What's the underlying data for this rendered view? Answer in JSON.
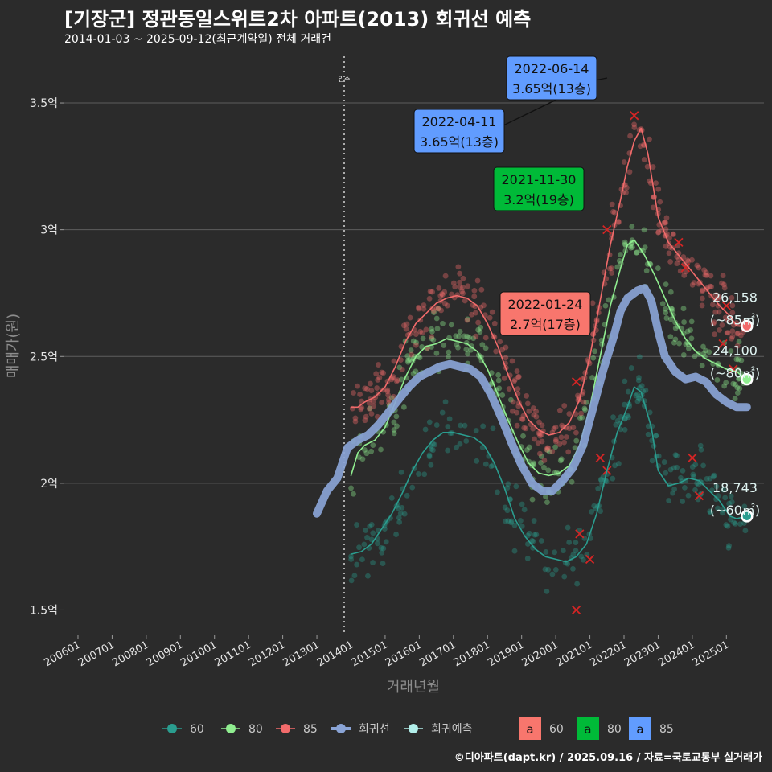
{
  "title": "[기장군] 정관동일스위트2차 아파트(2013) 회귀선 예측",
  "subtitle": "2014-01-03 ~ 2025-09-12(최근계약일) 전체 거래건",
  "footer": "©디아파트(dapt.kr) / 2025.09.16 / 자료=국토교통부 실거래가",
  "colors": {
    "background": "#2b2b2b",
    "grid": "#5e5e5e",
    "s60": "#2a9d8f",
    "s80": "#90ee90",
    "s85": "#f26b6b",
    "regression": "#8aa4d6",
    "forecast": "#b2efea",
    "label60": "#f8766d",
    "label80": "#00ba38",
    "label85": "#619cff"
  },
  "chart_data": {
    "type": "line",
    "title": "[기장군] 정관동일스위트2차 아파트(2013) 회귀선 예측",
    "xlabel": "거래년월",
    "ylabel": "매매가(원)",
    "x_ticks": [
      "200601",
      "200701",
      "200801",
      "200901",
      "201001",
      "201101",
      "201201",
      "201301",
      "201401",
      "201501",
      "201601",
      "201701",
      "201801",
      "201901",
      "202001",
      "202101",
      "202201",
      "202301",
      "202401",
      "202501"
    ],
    "y_ticks": [
      {
        "value": 1.5,
        "label": "1.5억"
      },
      {
        "value": 2.0,
        "label": "2억"
      },
      {
        "value": 2.5,
        "label": "2.5억"
      },
      {
        "value": 3.0,
        "label": "3억"
      },
      {
        "value": 3.5,
        "label": "3.5억"
      }
    ],
    "xlim": [
      2005.6,
      2026.1
    ],
    "ylim": [
      1.4,
      3.7
    ],
    "grid": true,
    "vline": {
      "x": 2013.8,
      "label": "입주"
    },
    "series": [
      {
        "name": "60",
        "color_key": "s60",
        "points": [
          [
            2014.0,
            1.72
          ],
          [
            2014.3,
            1.73
          ],
          [
            2014.6,
            1.76
          ],
          [
            2014.9,
            1.82
          ],
          [
            2015.2,
            1.88
          ],
          [
            2015.5,
            1.96
          ],
          [
            2015.8,
            2.05
          ],
          [
            2016.1,
            2.12
          ],
          [
            2016.4,
            2.17
          ],
          [
            2016.7,
            2.2
          ],
          [
            2017.0,
            2.2
          ],
          [
            2017.3,
            2.19
          ],
          [
            2017.6,
            2.18
          ],
          [
            2017.9,
            2.15
          ],
          [
            2018.2,
            2.08
          ],
          [
            2018.5,
            1.98
          ],
          [
            2018.8,
            1.86
          ],
          [
            2019.1,
            1.79
          ],
          [
            2019.4,
            1.74
          ],
          [
            2019.7,
            1.71
          ],
          [
            2020.0,
            1.7
          ],
          [
            2020.3,
            1.69
          ],
          [
            2020.6,
            1.71
          ],
          [
            2020.9,
            1.76
          ],
          [
            2021.2,
            1.88
          ],
          [
            2021.5,
            2.05
          ],
          [
            2021.8,
            2.2
          ],
          [
            2022.1,
            2.3
          ],
          [
            2022.3,
            2.38
          ],
          [
            2022.5,
            2.36
          ],
          [
            2022.8,
            2.22
          ],
          [
            2023.0,
            2.05
          ],
          [
            2023.3,
            1.99
          ],
          [
            2023.6,
            2.0
          ],
          [
            2023.9,
            2.02
          ],
          [
            2024.2,
            2.01
          ],
          [
            2024.5,
            1.97
          ],
          [
            2024.8,
            1.93
          ],
          [
            2025.1,
            1.87
          ],
          [
            2025.3,
            1.86
          ],
          [
            2025.6,
            1.87
          ]
        ],
        "end_value": "18,743",
        "end_label": "(~60㎡)"
      },
      {
        "name": "80",
        "color_key": "s80",
        "points": [
          [
            2014.0,
            2.03
          ],
          [
            2014.2,
            2.12
          ],
          [
            2014.4,
            2.15
          ],
          [
            2014.7,
            2.17
          ],
          [
            2015.0,
            2.22
          ],
          [
            2015.3,
            2.32
          ],
          [
            2015.6,
            2.42
          ],
          [
            2015.9,
            2.5
          ],
          [
            2016.2,
            2.54
          ],
          [
            2016.5,
            2.55
          ],
          [
            2016.8,
            2.57
          ],
          [
            2017.1,
            2.56
          ],
          [
            2017.4,
            2.55
          ],
          [
            2017.7,
            2.52
          ],
          [
            2018.0,
            2.45
          ],
          [
            2018.3,
            2.35
          ],
          [
            2018.6,
            2.25
          ],
          [
            2018.9,
            2.16
          ],
          [
            2019.2,
            2.08
          ],
          [
            2019.5,
            2.04
          ],
          [
            2019.8,
            2.03
          ],
          [
            2020.1,
            2.04
          ],
          [
            2020.4,
            2.07
          ],
          [
            2020.7,
            2.15
          ],
          [
            2021.0,
            2.3
          ],
          [
            2021.3,
            2.5
          ],
          [
            2021.6,
            2.7
          ],
          [
            2021.9,
            2.85
          ],
          [
            2022.1,
            2.94
          ],
          [
            2022.3,
            2.96
          ],
          [
            2022.6,
            2.9
          ],
          [
            2022.9,
            2.82
          ],
          [
            2023.2,
            2.73
          ],
          [
            2023.5,
            2.64
          ],
          [
            2023.8,
            2.57
          ],
          [
            2024.1,
            2.52
          ],
          [
            2024.4,
            2.49
          ],
          [
            2024.7,
            2.47
          ],
          [
            2025.0,
            2.45
          ],
          [
            2025.3,
            2.44
          ],
          [
            2025.6,
            2.41
          ]
        ],
        "end_value": "24,100",
        "end_label": "(~80㎡)"
      },
      {
        "name": "85",
        "color_key": "s85",
        "points": [
          [
            2014.0,
            2.3
          ],
          [
            2014.2,
            2.3
          ],
          [
            2014.4,
            2.32
          ],
          [
            2014.7,
            2.34
          ],
          [
            2015.0,
            2.38
          ],
          [
            2015.3,
            2.46
          ],
          [
            2015.6,
            2.56
          ],
          [
            2015.9,
            2.63
          ],
          [
            2016.2,
            2.67
          ],
          [
            2016.5,
            2.71
          ],
          [
            2016.8,
            2.73
          ],
          [
            2017.1,
            2.74
          ],
          [
            2017.4,
            2.73
          ],
          [
            2017.7,
            2.7
          ],
          [
            2018.0,
            2.63
          ],
          [
            2018.3,
            2.54
          ],
          [
            2018.6,
            2.43
          ],
          [
            2018.9,
            2.33
          ],
          [
            2019.2,
            2.25
          ],
          [
            2019.5,
            2.21
          ],
          [
            2019.8,
            2.19
          ],
          [
            2020.1,
            2.2
          ],
          [
            2020.4,
            2.24
          ],
          [
            2020.7,
            2.33
          ],
          [
            2021.0,
            2.5
          ],
          [
            2021.3,
            2.72
          ],
          [
            2021.6,
            2.94
          ],
          [
            2021.9,
            3.12
          ],
          [
            2022.1,
            3.25
          ],
          [
            2022.3,
            3.35
          ],
          [
            2022.5,
            3.4
          ],
          [
            2022.7,
            3.3
          ],
          [
            2023.0,
            3.05
          ],
          [
            2023.3,
            2.95
          ],
          [
            2023.6,
            2.9
          ],
          [
            2023.9,
            2.85
          ],
          [
            2024.2,
            2.8
          ],
          [
            2024.5,
            2.75
          ],
          [
            2024.8,
            2.7
          ],
          [
            2025.1,
            2.66
          ],
          [
            2025.3,
            2.62
          ],
          [
            2025.6,
            2.62
          ]
        ],
        "end_value": "26,158",
        "end_label": "(~85㎡)"
      },
      {
        "name": "회귀선",
        "color_key": "regression",
        "points": [
          [
            2013.0,
            1.88
          ],
          [
            2013.3,
            1.97
          ],
          [
            2013.6,
            2.02
          ],
          [
            2013.9,
            2.14
          ],
          [
            2014.2,
            2.17
          ],
          [
            2014.5,
            2.19
          ],
          [
            2014.8,
            2.23
          ],
          [
            2015.1,
            2.28
          ],
          [
            2015.4,
            2.33
          ],
          [
            2015.7,
            2.38
          ],
          [
            2016.0,
            2.42
          ],
          [
            2016.3,
            2.44
          ],
          [
            2016.6,
            2.46
          ],
          [
            2016.9,
            2.47
          ],
          [
            2017.2,
            2.46
          ],
          [
            2017.5,
            2.45
          ],
          [
            2017.8,
            2.42
          ],
          [
            2018.1,
            2.35
          ],
          [
            2018.4,
            2.26
          ],
          [
            2018.7,
            2.16
          ],
          [
            2019.0,
            2.07
          ],
          [
            2019.3,
            2.0
          ],
          [
            2019.6,
            1.97
          ],
          [
            2019.9,
            1.97
          ],
          [
            2020.2,
            2.01
          ],
          [
            2020.5,
            2.06
          ],
          [
            2020.8,
            2.15
          ],
          [
            2021.1,
            2.3
          ],
          [
            2021.4,
            2.45
          ],
          [
            2021.7,
            2.58
          ],
          [
            2021.9,
            2.68
          ],
          [
            2022.1,
            2.73
          ],
          [
            2022.4,
            2.76
          ],
          [
            2022.6,
            2.77
          ],
          [
            2022.8,
            2.72
          ],
          [
            2023.0,
            2.6
          ],
          [
            2023.2,
            2.5
          ],
          [
            2023.5,
            2.44
          ],
          [
            2023.8,
            2.41
          ],
          [
            2024.1,
            2.42
          ],
          [
            2024.4,
            2.4
          ],
          [
            2024.7,
            2.35
          ],
          [
            2025.0,
            2.32
          ],
          [
            2025.3,
            2.3
          ],
          [
            2025.6,
            2.3
          ]
        ]
      }
    ],
    "end_points": [
      {
        "name": "60",
        "x": 2025.6,
        "y": 1.87
      },
      {
        "name": "80",
        "x": 2025.6,
        "y": 2.41
      },
      {
        "name": "85",
        "x": 2025.6,
        "y": 2.62
      }
    ],
    "cancelled_x": [
      {
        "x": 2020.6,
        "y": 1.5
      },
      {
        "x": 2020.7,
        "y": 1.8
      },
      {
        "x": 2021.0,
        "y": 1.7
      },
      {
        "x": 2021.5,
        "y": 2.05
      },
      {
        "x": 2021.3,
        "y": 2.1
      },
      {
        "x": 2020.6,
        "y": 2.4
      },
      {
        "x": 2021.5,
        "y": 3.0
      },
      {
        "x": 2022.3,
        "y": 3.45
      },
      {
        "x": 2023.6,
        "y": 2.95
      },
      {
        "x": 2023.8,
        "y": 2.85
      },
      {
        "x": 2024.0,
        "y": 2.1
      },
      {
        "x": 2024.2,
        "y": 1.95
      },
      {
        "x": 2025.0,
        "y": 2.7
      },
      {
        "x": 2024.9,
        "y": 2.55
      },
      {
        "x": 2025.2,
        "y": 2.45
      }
    ],
    "annotations": [
      {
        "date": "2022-06-14",
        "price": "3.65억(13층)",
        "fill_key": "label85",
        "x": 2022.45,
        "y": 3.65
      },
      {
        "date": "2022-04-11",
        "price": "3.65억(13층)",
        "fill_key": "label85",
        "x": 2022.28,
        "y": 3.65
      },
      {
        "date": "2021-11-30",
        "price": "3.2억(19층)",
        "fill_key": "label80",
        "x": 2021.9,
        "y": 3.2
      },
      {
        "date": "2022-01-24",
        "price": "2.7억(17층)",
        "fill_key": "label60",
        "x": 2022.06,
        "y": 2.7
      }
    ],
    "legend": {
      "items": [
        {
          "label": "60",
          "color_key": "s60"
        },
        {
          "label": "80",
          "color_key": "s80"
        },
        {
          "label": "85",
          "color_key": "s85"
        },
        {
          "label": "회귀선",
          "color_key": "regression"
        },
        {
          "label": "회귀예측",
          "color_key": "forecast"
        }
      ],
      "label_items": [
        {
          "glyph": "a",
          "label": "60",
          "fill_key": "label60"
        },
        {
          "glyph": "a",
          "label": "80",
          "fill_key": "label80"
        },
        {
          "glyph": "a",
          "label": "85",
          "fill_key": "label85"
        }
      ]
    }
  }
}
